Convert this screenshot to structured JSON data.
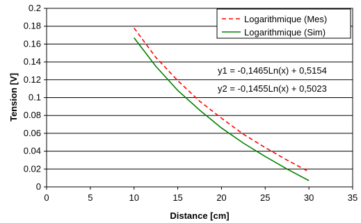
{
  "chart_data": {
    "type": "line",
    "title": "",
    "xlabel": "Distance [cm]",
    "ylabel": "Tension [V]",
    "xlim": [
      0,
      35
    ],
    "ylim": [
      0,
      0.2
    ],
    "x_ticks": [
      "0",
      "5",
      "10",
      "15",
      "20",
      "25",
      "30",
      "35"
    ],
    "y_ticks": [
      "0",
      "0.02",
      "0.04",
      "0.06",
      "0.08",
      "0.1",
      "0.12",
      "0.14",
      "0.16",
      "0.18",
      "0.2"
    ],
    "grid": "horizontal",
    "legend_position": "top-right",
    "x": [
      10,
      12.5,
      15,
      17.5,
      20,
      22.5,
      25,
      27.5,
      30
    ],
    "series": [
      {
        "name": "Logarithmique (Mes)",
        "color": "#ff0000",
        "style": "dashed",
        "values": [
          0.178,
          0.145,
          0.119,
          0.096,
          0.077,
          0.059,
          0.044,
          0.03,
          0.017
        ]
      },
      {
        "name": "Logarithmique (Sim)",
        "color": "#008000",
        "style": "solid",
        "values": [
          0.167,
          0.135,
          0.108,
          0.086,
          0.066,
          0.049,
          0.034,
          0.02,
          0.007
        ]
      }
    ],
    "annotations": [
      "y1 = -0,1465Ln(x) + 0,5154",
      "y2 = -0,1455Ln(x) + 0,5023"
    ]
  }
}
